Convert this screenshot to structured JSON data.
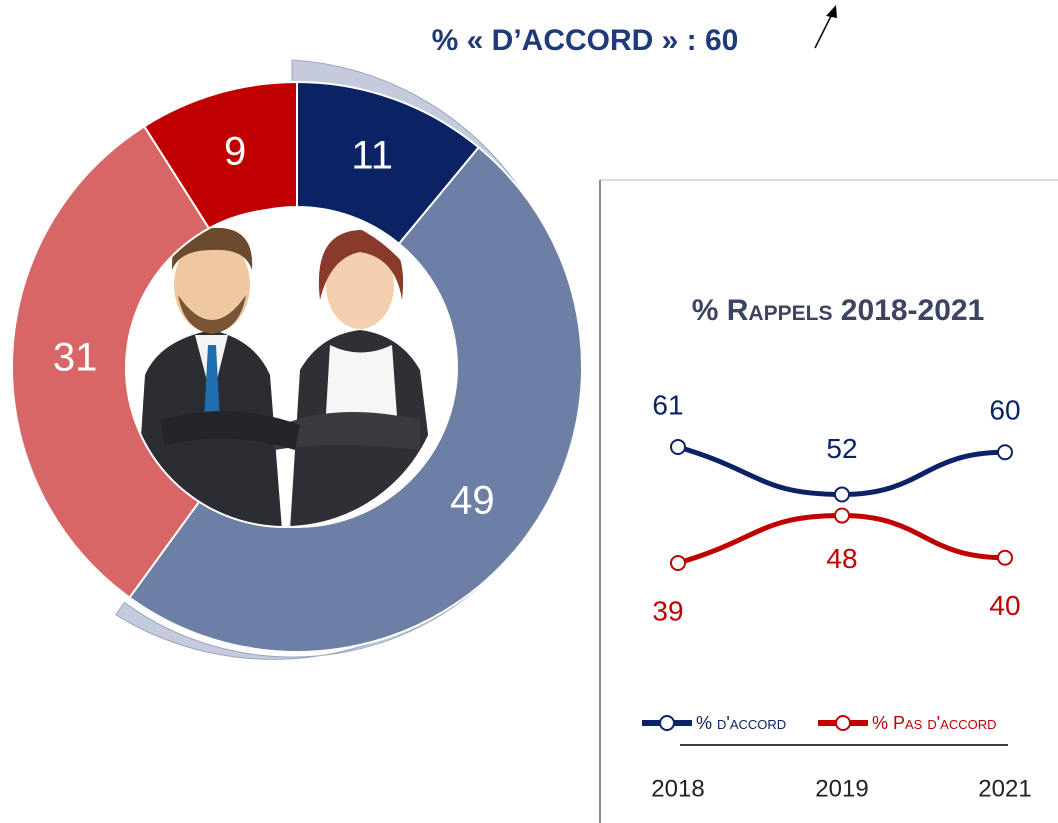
{
  "chart_data": [
    {
      "type": "donut",
      "title": "% « D’ACCORD » : 60",
      "values": [
        11,
        49,
        31,
        9
      ],
      "colors": [
        "#0b2265",
        "#6e7fa6",
        "#d96666",
        "#c00000"
      ]
    },
    {
      "type": "line",
      "title": "% Rappels 2018-2021",
      "categories": [
        "2018",
        "2019",
        "2021"
      ],
      "series": [
        {
          "name": "% d'accord",
          "color": "#0b2265",
          "values": [
            61,
            52,
            60
          ]
        },
        {
          "name": "% Pas d'accord",
          "color": "#c00000",
          "values": [
            39,
            48,
            40
          ]
        }
      ]
    }
  ]
}
